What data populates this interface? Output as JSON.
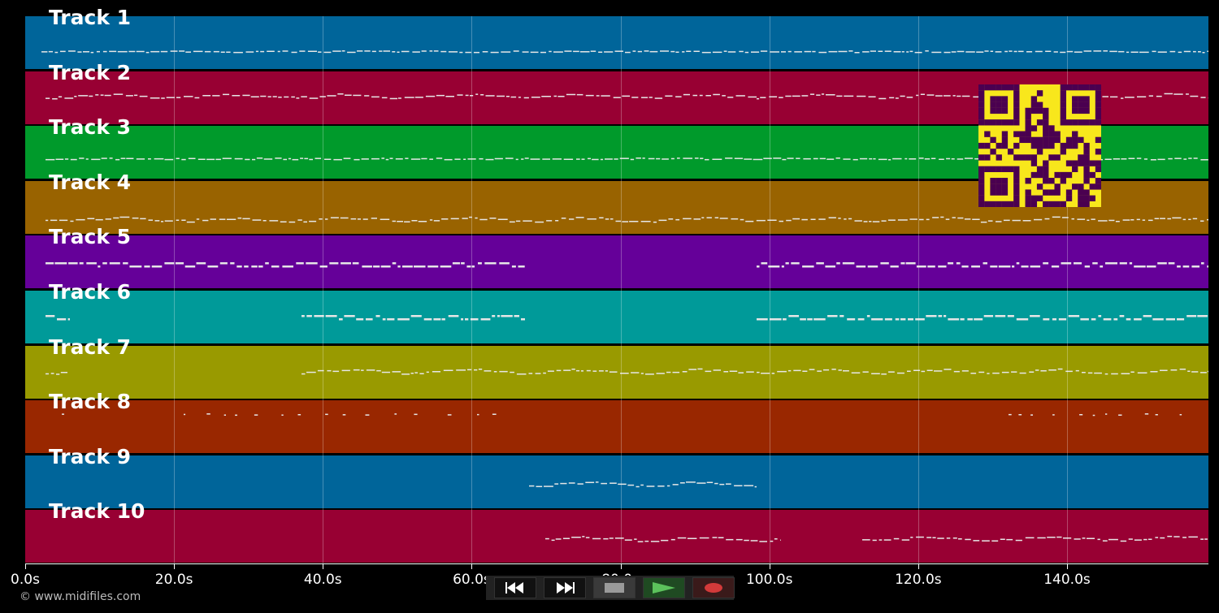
{
  "colors": {
    "background": "#000000",
    "track_colors": [
      "#00659a",
      "#980033",
      "#009a2b",
      "#996300",
      "#650099",
      "#009a99",
      "#999a00",
      "#992700",
      "#00659a",
      "#980033"
    ],
    "qr_fg": "#f8e71c",
    "qr_bg": "#4a0050"
  },
  "tracks": [
    {
      "label": "Track 1"
    },
    {
      "label": "Track 2"
    },
    {
      "label": "Track 3"
    },
    {
      "label": "Track 4"
    },
    {
      "label": "Track 5"
    },
    {
      "label": "Track 6"
    },
    {
      "label": "Track 7"
    },
    {
      "label": "Track 8"
    },
    {
      "label": "Track 9"
    },
    {
      "label": "Track 10"
    }
  ],
  "time_axis": {
    "ticks": [
      "0.0s",
      "20.0s",
      "40.0s",
      "60.0s",
      "80.0s",
      "100.0s",
      "120.0s",
      "140.0s"
    ],
    "tick_values": [
      0,
      20,
      40,
      60,
      80,
      100,
      120,
      140
    ],
    "range": [
      0,
      159
    ]
  },
  "copyright": "© www.midifiles.com",
  "transport": {
    "buttons": [
      {
        "name": "rewind-button",
        "icon": "rewind-icon"
      },
      {
        "name": "fast-forward-button",
        "icon": "fast-forward-icon"
      },
      {
        "name": "stop-button",
        "icon": "stop-icon"
      },
      {
        "name": "play-button",
        "icon": "play-icon"
      },
      {
        "name": "record-button",
        "icon": "record-icon"
      }
    ]
  }
}
